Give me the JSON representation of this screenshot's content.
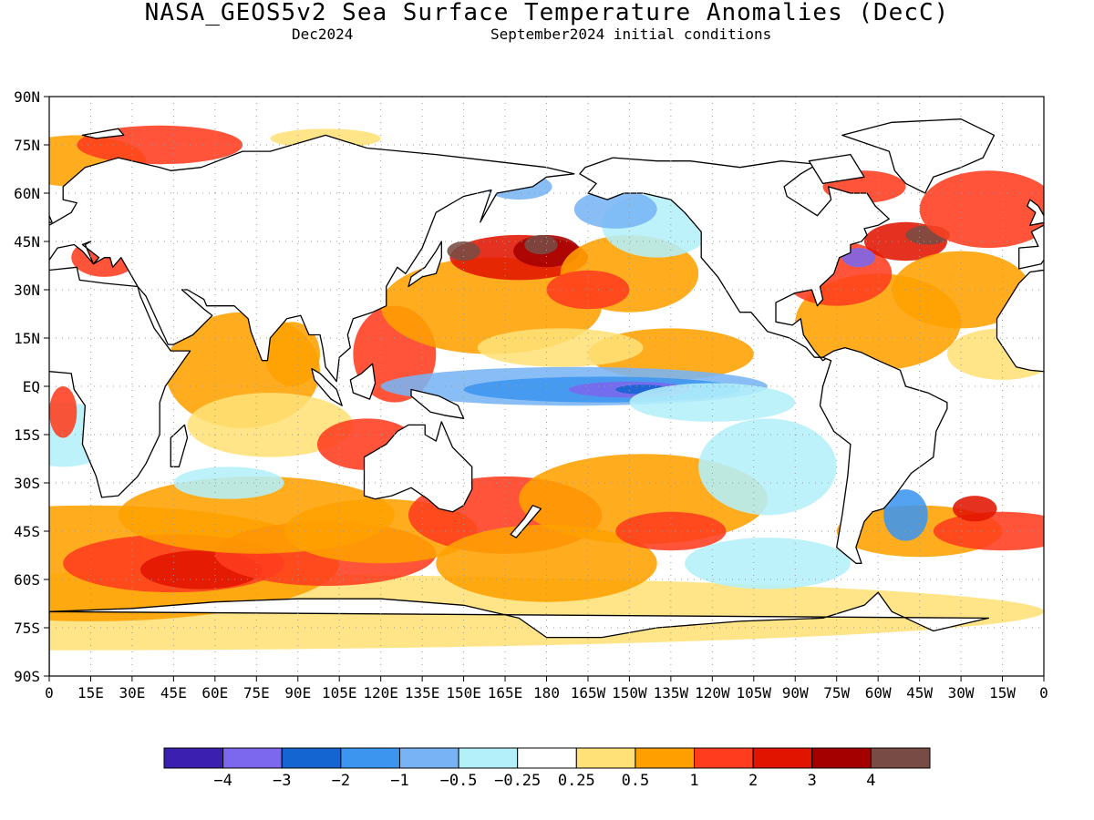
{
  "title": "NASA_GEOS5v2 Sea Surface Temperature Anomalies (DecC)",
  "subtitle_left": "Dec2024",
  "subtitle_right": "September2024 initial conditions",
  "map": {
    "lat_labels": [
      "90N",
      "75N",
      "60N",
      "45N",
      "30N",
      "15N",
      "EQ",
      "15S",
      "30S",
      "45S",
      "60S",
      "75S",
      "90S"
    ],
    "lon_labels": [
      "0",
      "15E",
      "30E",
      "45E",
      "60E",
      "75E",
      "90E",
      "105E",
      "120E",
      "135E",
      "150E",
      "165E",
      "180",
      "165W",
      "150W",
      "135W",
      "120W",
      "105W",
      "90W",
      "75W",
      "60W",
      "45W",
      "30W",
      "15W",
      "0"
    ],
    "grid": "dotted"
  },
  "colorbar": {
    "colors": [
      "#3a1fb0",
      "#7b68ee",
      "#1464d2",
      "#3c96f0",
      "#78b4f5",
      "#b4f0fa",
      "#ffffff",
      "#ffe178",
      "#ffa000",
      "#ff3c1e",
      "#e11400",
      "#a50000",
      "#784c44"
    ],
    "labels": [
      "−4",
      "−3",
      "−2",
      "−1",
      "−0.5",
      "−0.25",
      "0.25",
      "0.5",
      "1",
      "2",
      "3",
      "4"
    ]
  },
  "anomaly_colors": {
    "strong_warm": "#a50000",
    "warm": "#e11400",
    "moderate_warm": "#ff3c1e",
    "mild_warm": "#ffa000",
    "slight_warm": "#ffe178",
    "extreme_warm": "#784c44",
    "slight_cool": "#b4f0fa",
    "mild_cool": "#78b4f5",
    "cool": "#3c96f0",
    "strong_cool": "#1464d2",
    "very_cool": "#7b68ee"
  }
}
